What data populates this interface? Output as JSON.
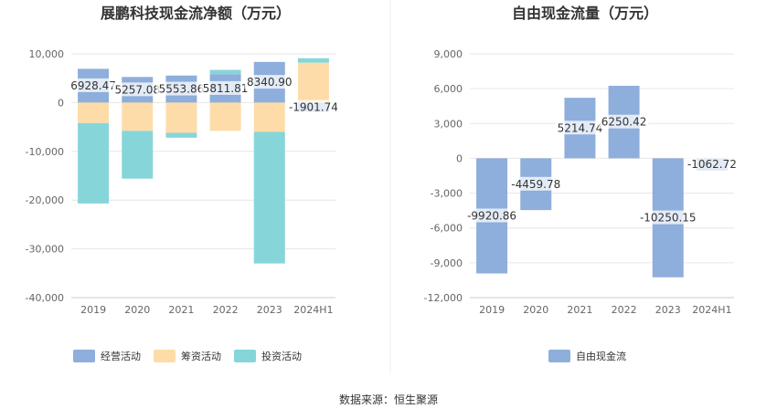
{
  "source": "数据来源：恒生聚源",
  "chart_data": [
    {
      "type": "bar",
      "stacked": true,
      "title": "展鹏科技现金流净额（万元）",
      "categories": [
        "2019",
        "2020",
        "2021",
        "2022",
        "2023",
        "2024H1"
      ],
      "yticks": [
        "10,000",
        "0",
        "-10,000",
        "-20,000",
        "-30,000",
        "-40,000"
      ],
      "ylim": [
        -40000,
        10000
      ],
      "grid": true,
      "legend_position": "bottom",
      "series": [
        {
          "name": "经营活动",
          "color": "#8eaedc",
          "values": [
            6928.47,
            5257.08,
            5553.86,
            5811.81,
            8340.9,
            -1901.74
          ]
        },
        {
          "name": "筹资活动",
          "color": "#fddcaa",
          "values": [
            -4200,
            -5800,
            -6200,
            -5800,
            -6000,
            8200
          ]
        },
        {
          "name": "投资活动",
          "color": "#86d6d9",
          "values": [
            -16500,
            -9800,
            -1000,
            900,
            -27000,
            900
          ]
        }
      ],
      "data_labels": [
        "6928.47",
        "5257.08",
        "5553.86",
        "5811.81",
        "8340.90",
        "-1901.74"
      ]
    },
    {
      "type": "bar",
      "title": "自由现金流量（万元）",
      "categories": [
        "2019",
        "2020",
        "2021",
        "2022",
        "2023",
        "2024H1"
      ],
      "yticks": [
        "9,000",
        "6,000",
        "3,000",
        "0",
        "-3,000",
        "-6,000",
        "-9,000",
        "-12,000"
      ],
      "ylim": [
        -12000,
        9000
      ],
      "grid": true,
      "legend_position": "bottom",
      "series": [
        {
          "name": "自由现金流",
          "color": "#8eaedc",
          "values": [
            -9920.86,
            -4459.78,
            5214.74,
            6250.42,
            -10250.15,
            -1062.72
          ]
        }
      ],
      "data_labels": [
        "-9920.86",
        "-4459.78",
        "5214.74",
        "6250.42",
        "-10250.15",
        "-1062.72"
      ]
    }
  ]
}
